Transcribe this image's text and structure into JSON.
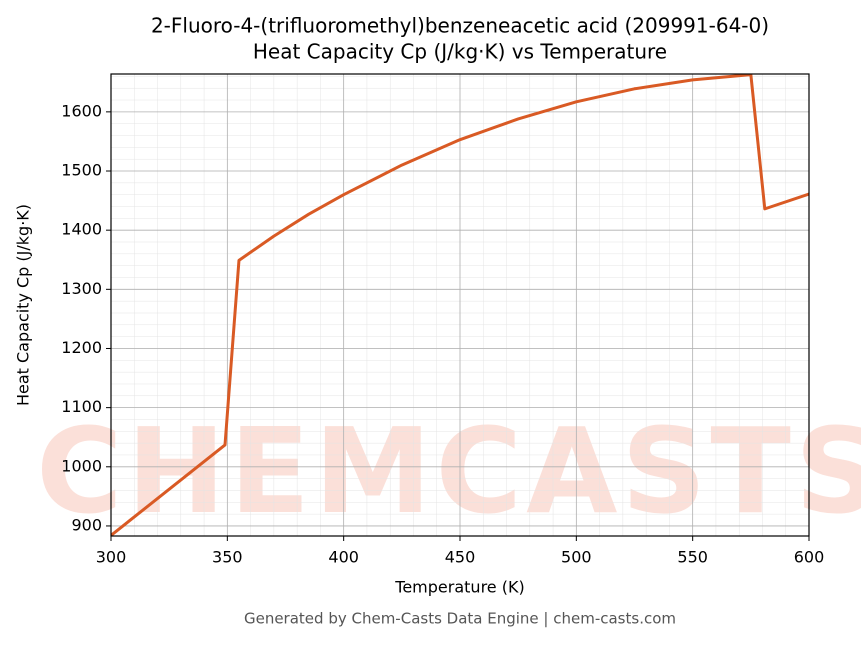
{
  "chart_data": {
    "type": "line",
    "title": "2-Fluoro-4-(trifluoromethyl)benzeneacetic acid (209991-64-0)",
    "subtitle": "Heat Capacity Cp (J/kg·K) vs Temperature",
    "x_label": "Temperature (K)",
    "y_label": "Heat Capacity Cp (J/kg·K)",
    "footer": "Generated by Chem-Casts Data Engine | chem-casts.com",
    "watermark": "CHEMCASTS",
    "x": [
      300,
      349,
      355,
      370,
      385,
      400,
      425,
      450,
      475,
      500,
      525,
      550,
      575,
      581,
      600
    ],
    "series": [
      {
        "name": "Cp",
        "color": "#d95a24",
        "values": [
          884,
          1037,
          1349,
          1390,
          1427,
          1460,
          1510,
          1553,
          1588,
          1617,
          1639,
          1654,
          1663,
          1436,
          1461
        ]
      }
    ],
    "xlim": [
      300,
      600
    ],
    "ylim": [
      883,
      1664
    ],
    "xticks": [
      300,
      350,
      400,
      450,
      500,
      550,
      600
    ],
    "yticks": [
      900,
      1000,
      1100,
      1200,
      1300,
      1400,
      1500,
      1600
    ],
    "grid": true
  }
}
